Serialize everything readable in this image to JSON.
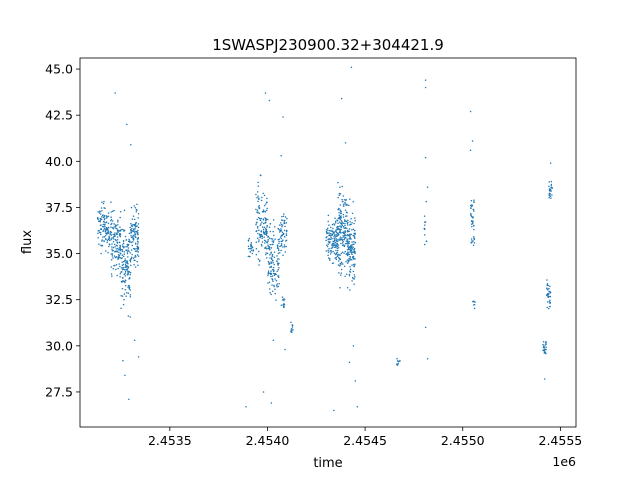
{
  "chart_data": {
    "type": "scatter",
    "title": "1SWASPJ230900.32+304421.9",
    "xlabel": "time",
    "ylabel": "flux",
    "x_offset_label": "1e6",
    "xlim": [
      2.45304,
      2.45558
    ],
    "ylim": [
      25.6,
      45.6
    ],
    "x_ticks": [
      2.4535,
      2.454,
      2.4545,
      2.455,
      2.4555
    ],
    "x_tick_labels": [
      "2.4535",
      "2.4540",
      "2.4545",
      "2.4550",
      "2.4555"
    ],
    "y_ticks": [
      27.5,
      30.0,
      32.5,
      35.0,
      37.5,
      40.0,
      42.5,
      45.0
    ],
    "y_tick_labels": [
      "27.5",
      "30.0",
      "32.5",
      "35.0",
      "37.5",
      "40.0",
      "42.5",
      "45.0"
    ],
    "grid": false,
    "legend": "none",
    "marker_color": "#1f77b4",
    "clusters": [
      {
        "x_start": 2.45313,
        "x_end": 2.4532,
        "y_center": 36.4,
        "y_spread": 1.2,
        "count": 120
      },
      {
        "x_start": 2.4532,
        "x_end": 2.45325,
        "y_center": 35.6,
        "y_spread": 1.6,
        "count": 120
      },
      {
        "x_start": 2.45325,
        "x_end": 2.4533,
        "y_center": 34.4,
        "y_spread": 2.2,
        "count": 140
      },
      {
        "x_start": 2.4533,
        "x_end": 2.45334,
        "y_center": 35.9,
        "y_spread": 1.5,
        "count": 110
      },
      {
        "x_start": 2.4539,
        "x_end": 2.45393,
        "y_center": 35.2,
        "y_spread": 0.5,
        "count": 25
      },
      {
        "x_start": 2.45394,
        "x_end": 2.454,
        "y_center": 36.6,
        "y_spread": 2.1,
        "count": 130
      },
      {
        "x_start": 2.454,
        "x_end": 2.45406,
        "y_center": 34.6,
        "y_spread": 1.8,
        "count": 130
      },
      {
        "x_start": 2.45406,
        "x_end": 2.4541,
        "y_center": 36.1,
        "y_spread": 1.0,
        "count": 60
      },
      {
        "x_start": 2.45407,
        "x_end": 2.45409,
        "y_center": 32.3,
        "y_spread": 0.3,
        "count": 15
      },
      {
        "x_start": 2.45412,
        "x_end": 2.45414,
        "y_center": 31.0,
        "y_spread": 0.3,
        "count": 12
      },
      {
        "x_start": 2.4543,
        "x_end": 2.45436,
        "y_center": 35.8,
        "y_spread": 1.3,
        "count": 130
      },
      {
        "x_start": 2.45436,
        "x_end": 2.45441,
        "y_center": 36.2,
        "y_spread": 2.3,
        "count": 170
      },
      {
        "x_start": 2.45441,
        "x_end": 2.45445,
        "y_center": 35.3,
        "y_spread": 1.8,
        "count": 140
      },
      {
        "x_start": 2.45466,
        "x_end": 2.45468,
        "y_center": 29.2,
        "y_spread": 0.2,
        "count": 10
      },
      {
        "x_start": 2.4548,
        "x_end": 2.45482,
        "y_center": 36.6,
        "y_spread": 1.0,
        "count": 12
      },
      {
        "x_start": 2.45504,
        "x_end": 2.45506,
        "y_center": 37.2,
        "y_spread": 0.8,
        "count": 30
      },
      {
        "x_start": 2.45504,
        "x_end": 2.45506,
        "y_center": 35.8,
        "y_spread": 0.3,
        "count": 12
      },
      {
        "x_start": 2.45505,
        "x_end": 2.45507,
        "y_center": 32.3,
        "y_spread": 0.3,
        "count": 8
      },
      {
        "x_start": 2.45541,
        "x_end": 2.45543,
        "y_center": 29.9,
        "y_spread": 0.4,
        "count": 25
      },
      {
        "x_start": 2.45543,
        "x_end": 2.45545,
        "y_center": 32.8,
        "y_spread": 0.8,
        "count": 35
      },
      {
        "x_start": 2.45544,
        "x_end": 2.45546,
        "y_center": 38.4,
        "y_spread": 0.5,
        "count": 25
      }
    ],
    "outliers": [
      {
        "x": 2.45322,
        "y": 43.7
      },
      {
        "x": 2.45328,
        "y": 42.0
      },
      {
        "x": 2.4533,
        "y": 40.9
      },
      {
        "x": 2.45326,
        "y": 29.2
      },
      {
        "x": 2.45327,
        "y": 28.4
      },
      {
        "x": 2.45329,
        "y": 27.1
      },
      {
        "x": 2.45334,
        "y": 29.4
      },
      {
        "x": 2.45332,
        "y": 30.3
      },
      {
        "x": 2.45389,
        "y": 26.7
      },
      {
        "x": 2.45399,
        "y": 43.7
      },
      {
        "x": 2.45401,
        "y": 43.3
      },
      {
        "x": 2.45398,
        "y": 27.5
      },
      {
        "x": 2.45402,
        "y": 26.9
      },
      {
        "x": 2.45408,
        "y": 42.4
      },
      {
        "x": 2.45407,
        "y": 40.3
      },
      {
        "x": 2.45403,
        "y": 30.3
      },
      {
        "x": 2.45409,
        "y": 29.8
      },
      {
        "x": 2.45434,
        "y": 26.5
      },
      {
        "x": 2.45438,
        "y": 43.4
      },
      {
        "x": 2.4544,
        "y": 41.0
      },
      {
        "x": 2.45443,
        "y": 45.1
      },
      {
        "x": 2.45444,
        "y": 30.0
      },
      {
        "x": 2.45442,
        "y": 29.1
      },
      {
        "x": 2.45445,
        "y": 28.1
      },
      {
        "x": 2.45446,
        "y": 26.7
      },
      {
        "x": 2.45481,
        "y": 44.4
      },
      {
        "x": 2.45481,
        "y": 44.0
      },
      {
        "x": 2.45481,
        "y": 40.2
      },
      {
        "x": 2.45482,
        "y": 38.6
      },
      {
        "x": 2.45481,
        "y": 31.0
      },
      {
        "x": 2.45482,
        "y": 29.3
      },
      {
        "x": 2.45504,
        "y": 42.7
      },
      {
        "x": 2.45505,
        "y": 41.1
      },
      {
        "x": 2.45504,
        "y": 40.6
      },
      {
        "x": 2.45542,
        "y": 28.2
      },
      {
        "x": 2.45545,
        "y": 39.9
      }
    ]
  }
}
